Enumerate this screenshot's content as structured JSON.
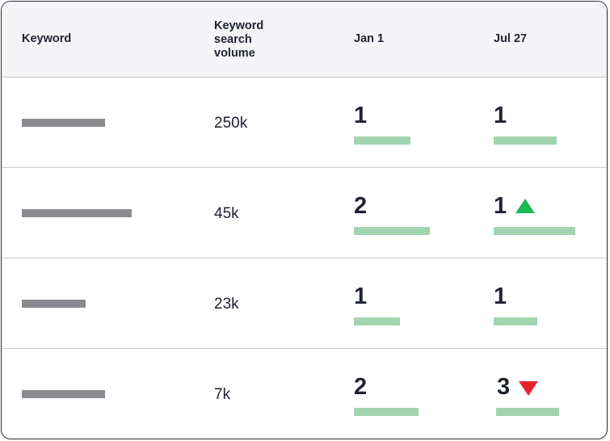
{
  "headers": {
    "keyword": "Keyword",
    "volume": "Keyword\nsearch\nvolume",
    "date1": "Jan 1",
    "date2": "Jul 27"
  },
  "rows": [
    {
      "volume": "250k",
      "jan_rank": "1",
      "jul_rank": "1",
      "change": "none"
    },
    {
      "volume": "45k",
      "jan_rank": "2",
      "jul_rank": "1",
      "change": "up"
    },
    {
      "volume": "23k",
      "jan_rank": "1",
      "jul_rank": "1",
      "change": "none"
    },
    {
      "volume": "7k",
      "jan_rank": "2",
      "jul_rank": "3",
      "change": "down"
    }
  ],
  "colors": {
    "up": "#1db954",
    "down": "#e8232e",
    "bar": "#a3d4b0",
    "keyword_bar": "#8a8a90"
  },
  "icons": {
    "up": "triangle-up-icon",
    "down": "triangle-down-icon"
  }
}
